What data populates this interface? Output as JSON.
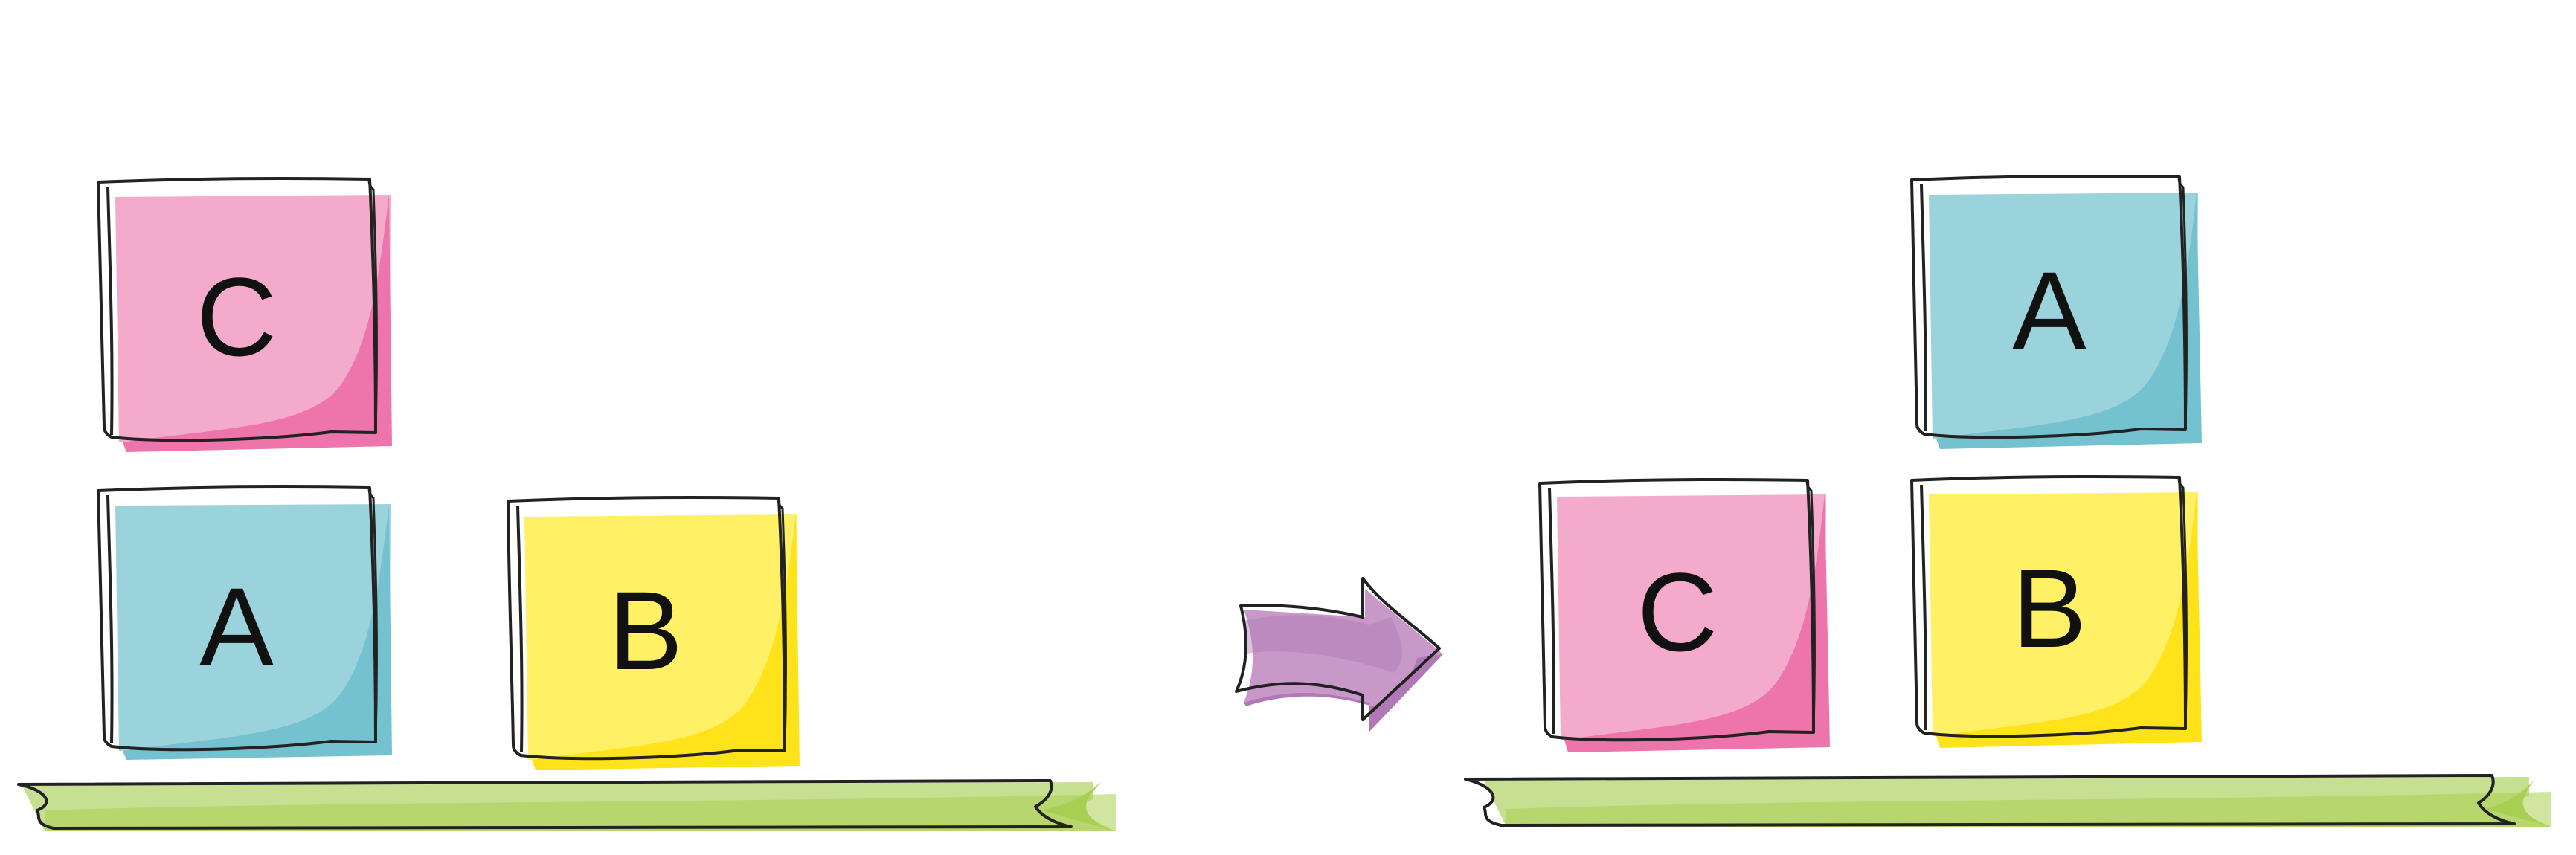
{
  "initial_state": {
    "blocks": [
      {
        "id": "C",
        "label": "C",
        "color": "pink"
      },
      {
        "id": "A",
        "label": "A",
        "color": "blue"
      },
      {
        "id": "B",
        "label": "B",
        "color": "yellow"
      }
    ],
    "stacks": [
      [
        "A",
        "C"
      ],
      [
        "B"
      ]
    ]
  },
  "goal_state": {
    "blocks": [
      {
        "id": "A",
        "label": "A",
        "color": "blue"
      },
      {
        "id": "C",
        "label": "C",
        "color": "pink"
      },
      {
        "id": "B",
        "label": "B",
        "color": "yellow"
      }
    ],
    "stacks": [
      [
        "C"
      ],
      [
        "B",
        "A"
      ]
    ]
  },
  "colors": {
    "pink_light": "#f4abcb",
    "pink_dark": "#ee75ab",
    "blue_light": "#9bd3dd",
    "blue_dark": "#74c2cf",
    "yellow_light": "#fff066",
    "yellow_dark": "#ffe31a",
    "table_light": "#c7df91",
    "table_dark": "#a9cf52",
    "arrow_light": "#c898c8",
    "arrow_dark": "#b079b6",
    "outline": "#222222"
  }
}
